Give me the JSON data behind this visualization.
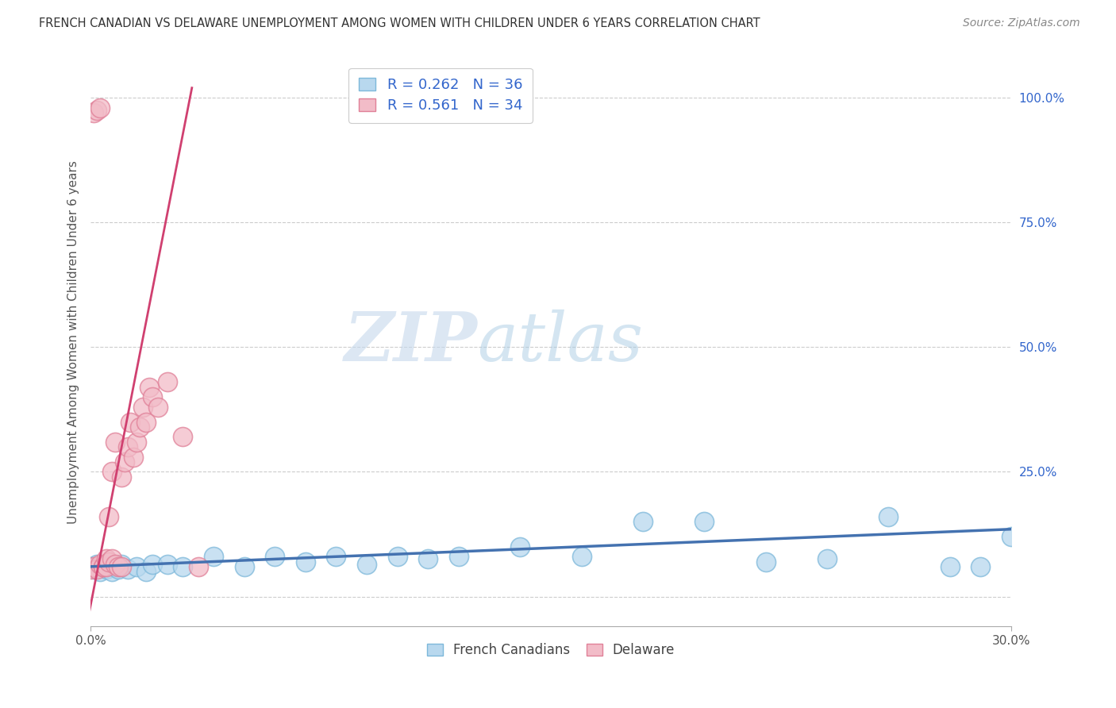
{
  "title": "FRENCH CANADIAN VS DELAWARE UNEMPLOYMENT AMONG WOMEN WITH CHILDREN UNDER 6 YEARS CORRELATION CHART",
  "source": "Source: ZipAtlas.com",
  "ylabel": "Unemployment Among Women with Children Under 6 years",
  "xlim": [
    0.0,
    0.3
  ],
  "ylim": [
    -0.06,
    1.08
  ],
  "yticks": [
    0.0,
    0.25,
    0.5,
    0.75,
    1.0
  ],
  "ytick_labels": [
    "",
    "25.0%",
    "50.0%",
    "75.0%",
    "100.0%"
  ],
  "legend_r1": "R = 0.262",
  "legend_n1": "N = 36",
  "legend_r2": "R = 0.561",
  "legend_n2": "N = 34",
  "blue_color": "#7db8da",
  "blue_fill": "#b8d8ee",
  "pink_color": "#e08098",
  "pink_fill": "#f2bcc8",
  "trend_blue": "#4472b0",
  "trend_pink": "#d04070",
  "watermark_zip": "ZIP",
  "watermark_atlas": "atlas",
  "background": "#ffffff",
  "fc_x": [
    0.0,
    0.001,
    0.002,
    0.003,
    0.004,
    0.005,
    0.006,
    0.007,
    0.008,
    0.009,
    0.01,
    0.012,
    0.015,
    0.018,
    0.02,
    0.025,
    0.03,
    0.04,
    0.05,
    0.06,
    0.07,
    0.08,
    0.09,
    0.1,
    0.11,
    0.12,
    0.14,
    0.16,
    0.18,
    0.2,
    0.22,
    0.24,
    0.26,
    0.28,
    0.29,
    0.3
  ],
  "fc_y": [
    0.06,
    0.055,
    0.065,
    0.05,
    0.06,
    0.055,
    0.065,
    0.05,
    0.06,
    0.055,
    0.065,
    0.055,
    0.06,
    0.05,
    0.065,
    0.065,
    0.06,
    0.08,
    0.06,
    0.08,
    0.07,
    0.08,
    0.065,
    0.08,
    0.075,
    0.08,
    0.1,
    0.08,
    0.15,
    0.15,
    0.07,
    0.075,
    0.16,
    0.06,
    0.06,
    0.12
  ],
  "de_x": [
    0.0,
    0.001,
    0.001,
    0.002,
    0.002,
    0.003,
    0.003,
    0.004,
    0.004,
    0.005,
    0.005,
    0.006,
    0.006,
    0.007,
    0.007,
    0.008,
    0.008,
    0.009,
    0.01,
    0.01,
    0.011,
    0.012,
    0.013,
    0.014,
    0.015,
    0.016,
    0.017,
    0.018,
    0.019,
    0.02,
    0.022,
    0.025,
    0.03,
    0.035
  ],
  "de_y": [
    0.055,
    0.06,
    0.97,
    0.055,
    0.975,
    0.065,
    0.98,
    0.06,
    0.06,
    0.06,
    0.075,
    0.07,
    0.16,
    0.075,
    0.25,
    0.065,
    0.31,
    0.06,
    0.06,
    0.24,
    0.27,
    0.3,
    0.35,
    0.28,
    0.31,
    0.34,
    0.38,
    0.35,
    0.42,
    0.4,
    0.38,
    0.43,
    0.32,
    0.06
  ],
  "grid_color": "#cccccc",
  "legend_text_color": "#3366cc"
}
